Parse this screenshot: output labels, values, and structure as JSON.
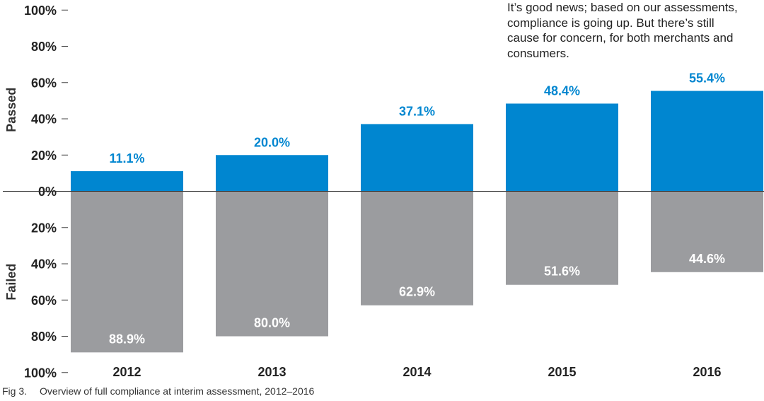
{
  "chart_data": {
    "type": "bar",
    "categories": [
      "2012",
      "2013",
      "2014",
      "2015",
      "2016"
    ],
    "series": [
      {
        "name": "Passed",
        "values": [
          11.1,
          20.0,
          37.1,
          48.4,
          55.4
        ],
        "color": "#0086d0"
      },
      {
        "name": "Failed",
        "values": [
          88.9,
          80.0,
          62.9,
          51.6,
          44.6
        ],
        "color": "#9b9c9f"
      }
    ],
    "data_labels": {
      "passed": [
        "11.1%",
        "20.0%",
        "37.1%",
        "48.4%",
        "55.4%"
      ],
      "failed": [
        "88.9%",
        "80.0%",
        "62.9%",
        "51.6%",
        "44.6%"
      ]
    },
    "y_ticks": [
      "100%",
      "80%",
      "60%",
      "40%",
      "20%",
      "0%",
      "20%",
      "40%",
      "60%",
      "80%",
      "100%"
    ],
    "ylim": [
      -100,
      100
    ],
    "axis_labels": {
      "upper": "Passed",
      "lower": "Failed"
    },
    "grid": false,
    "colors": {
      "passed": "#0086d0",
      "failed": "#9b9c9f",
      "passed_label": "#0086d0",
      "failed_label": "#ffffff"
    }
  },
  "annotation": "It’s good news; based on our assessments, compliance is going up. But there’s still cause for concern, for both merchants and consumers.",
  "caption": {
    "fig": "Fig 3.",
    "text": "Overview of full compliance at interim assessment, 2012–2016"
  }
}
